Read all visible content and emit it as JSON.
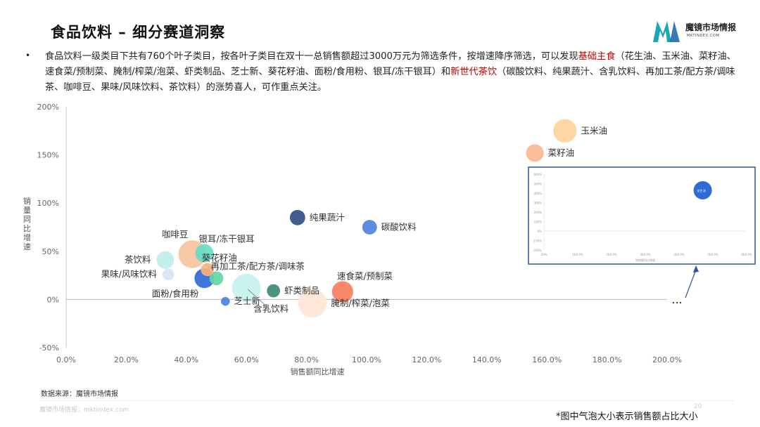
{
  "page": {
    "title": "食品饮料 – 细分赛道洞察",
    "logo_name": "魔镜市场情报",
    "logo_url": "MKTINDEX.COM",
    "bullet": "•",
    "paragraph_parts": [
      {
        "text": "食品饮料一级类目下共有760个叶子类目，按各叶子类目在双十一总销售额超过3000万元为筛选条件，按增速降序筛选，可以发现",
        "highlight": false
      },
      {
        "text": "基础主食",
        "highlight": true
      },
      {
        "text": "（花生油、玉米油、菜籽油、速食菜/预制菜、腌制/榨菜/泡菜、虾类制品、芝士新、葵花籽油、面粉/食用粉、银耳/冻干银耳）和",
        "highlight": false
      },
      {
        "text": "新世代茶饮",
        "highlight": true
      },
      {
        "text": "（碳酸饮料、纯果蔬汁、含乳饮料、再加工茶/配方茶/调味茶、咖啡豆、果味/风味饮料、茶饮料）的涨势喜人，可作重点关注。",
        "highlight": false
      }
    ],
    "source": "数据来源：魔镜市场情报",
    "watermark": "魔镜市场情报：mktindex.com",
    "page_number": "20",
    "note": "*图中气泡大小表示销售额占比大小",
    "ellipsis": "..."
  },
  "colors": {
    "highlight": "#c00000",
    "axis_text": "#666666",
    "inset_border": "#2e5597"
  },
  "chart_data": {
    "type": "scatter",
    "bubble": true,
    "xlabel": "销售额同比增速",
    "ylabel": "销量同比增速",
    "xlim": [
      0,
      200
    ],
    "ylim": [
      -50,
      200
    ],
    "x_ticks": [
      "0.0%",
      "20.0%",
      "40.0%",
      "60.0%",
      "80.0%",
      "100.0%",
      "120.0%",
      "140.0%",
      "160.0%",
      "180.0%",
      "200.0%"
    ],
    "y_ticks": [
      "-50%",
      "0%",
      "50%",
      "100%",
      "150%",
      "200%"
    ],
    "x_unit": "%",
    "y_unit": "%",
    "grid": false,
    "points": [
      {
        "label": "玉米油",
        "x": 166,
        "y": 175,
        "size": 3.2,
        "color": "#fdd39b",
        "label_pos": "right"
      },
      {
        "label": "菜籽油",
        "x": 156,
        "y": 152,
        "size": 2.4,
        "color": "#f8b98e",
        "label_pos": "right"
      },
      {
        "label": "纯果蔬汁",
        "x": 77,
        "y": 85,
        "size": 2.1,
        "color": "#2f4f85",
        "label_pos": "right"
      },
      {
        "label": "碳酸饮料",
        "x": 101,
        "y": 75,
        "size": 2.0,
        "color": "#4f82dd",
        "label_pos": "right"
      },
      {
        "label": "咖啡豆",
        "x": 42,
        "y": 47,
        "size": 3.8,
        "color": "#f8c39e",
        "label_pos": "top-left"
      },
      {
        "label": "茶饮料",
        "x": 33,
        "y": 41,
        "size": 2.4,
        "color": "#bfeee8",
        "label_pos": "left"
      },
      {
        "label": "银耳/冻干银耳",
        "x": 46,
        "y": 48,
        "size": 2.5,
        "color": "#67dcc8",
        "label_pos": "top-right"
      },
      {
        "label": "葵花籽油",
        "x": 47,
        "y": 31,
        "size": 1.8,
        "color": "#fbb17c",
        "label_pos": "top-right"
      },
      {
        "label": "果味/风味饮料",
        "x": 34,
        "y": 26,
        "size": 1.6,
        "color": "#d7e4f7",
        "label_pos": "left"
      },
      {
        "label": "再加工茶/配方茶/调味茶",
        "x": 50,
        "y": 22,
        "size": 1.9,
        "color": "#63d6a2",
        "label_pos": "top-right"
      },
      {
        "label": "面粉/食用粉",
        "x": 46,
        "y": 22,
        "size": 2.7,
        "color": "#2e6bd6",
        "label_pos": "bottom-left"
      },
      {
        "label": "含乳饮料",
        "x": 60,
        "y": 12,
        "size": 3.9,
        "color": "#c6f2ec",
        "label_pos": "bottom-right"
      },
      {
        "label": "虾类制品",
        "x": 69,
        "y": 9,
        "size": 1.8,
        "color": "#3b8c76",
        "label_pos": "right"
      },
      {
        "label": "速食菜/预制菜",
        "x": 92,
        "y": 8,
        "size": 2.9,
        "color": "#fb7d60",
        "label_pos": "top-right"
      },
      {
        "label": "芝士新",
        "x": 53,
        "y": -2,
        "size": 1.2,
        "color": "#4a82e3",
        "label_pos": "right"
      },
      {
        "label": "腌制/榨菜/泡菜",
        "x": 82,
        "y": -4,
        "size": 3.9,
        "color": "#fde6d6",
        "label_pos": "right"
      }
    ],
    "inset": {
      "x_ticks": [
        "20%",
        "100.0%",
        "200.0%",
        "300.0%",
        "400.0%",
        "500.0%",
        "600.0%"
      ],
      "y_ticks": [
        "-200%",
        "-100%",
        "0%",
        "100%",
        "200%",
        "300%",
        "400%",
        "500%",
        "600%"
      ],
      "xlabel": "销售额同比增速",
      "ylabel": "销量同比增速",
      "points": [
        {
          "label": "花生油",
          "x": 470,
          "y": 430,
          "color": "#2e6bd6"
        }
      ]
    }
  }
}
